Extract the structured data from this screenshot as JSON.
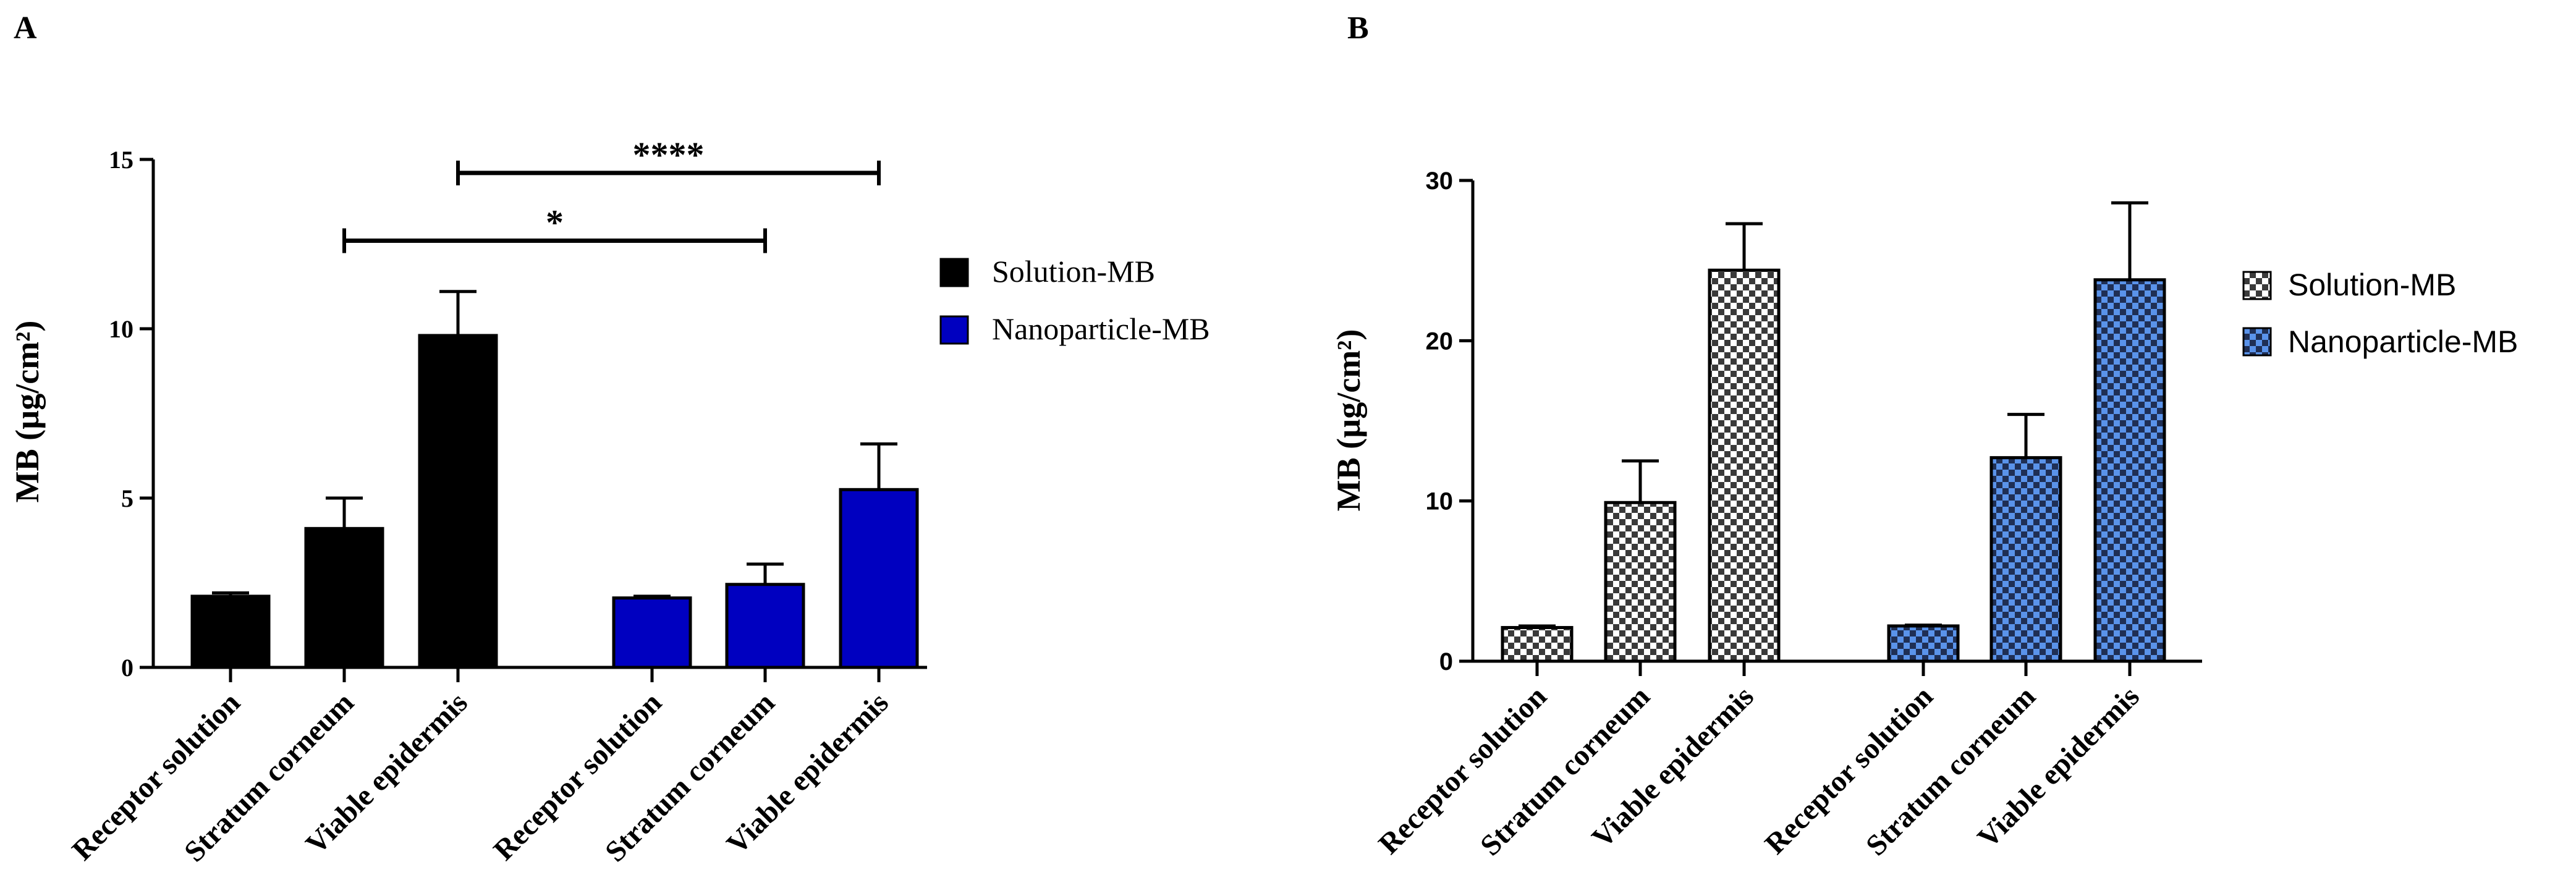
{
  "chart_data": [
    {
      "panel_label": "A",
      "type": "bar",
      "title": "",
      "ylabel": "MB (µg/cm²)",
      "ylim": [
        0,
        15
      ],
      "yticks": [
        0,
        5,
        10,
        15
      ],
      "legend_position": "right",
      "colors": {
        "Solution-MB": "#000000",
        "Nanoparticle-MB": "#0000c0"
      },
      "groups": [
        {
          "series": "Solution-MB",
          "categories": [
            "Receptor solution",
            "Stratum corneum",
            "Viable epidermis"
          ],
          "values": [
            2.1,
            4.1,
            9.8
          ],
          "errors": [
            0.1,
            0.9,
            1.3
          ]
        },
        {
          "series": "Nanoparticle-MB",
          "categories": [
            "Receptor solution",
            "Stratum corneum",
            "Viable epidermis"
          ],
          "values": [
            2.05,
            2.45,
            5.25
          ],
          "errors": [
            0.05,
            0.6,
            1.35
          ]
        }
      ],
      "significance": [
        {
          "label": "*",
          "from_bar": 1,
          "to_bar": 4,
          "y": 12.6
        },
        {
          "label": "****",
          "from_bar": 2,
          "to_bar": 5,
          "y": 14.6
        }
      ]
    },
    {
      "panel_label": "B",
      "type": "bar",
      "title": "",
      "ylabel": "MB (µg/cm²)",
      "ylim": [
        0,
        30
      ],
      "yticks": [
        0,
        10,
        20,
        30
      ],
      "legend_position": "right",
      "colors": {
        "Solution-MB": "#3a3a3a",
        "Nanoparticle-MB": "#2f6fd0"
      },
      "groups": [
        {
          "series": "Solution-MB",
          "categories": [
            "Receptor solution",
            "Stratum corneum",
            "Viable epidermis"
          ],
          "values": [
            2.1,
            9.9,
            24.4
          ],
          "errors": [
            0.1,
            2.6,
            2.9
          ]
        },
        {
          "series": "Nanoparticle-MB",
          "categories": [
            "Receptor solution",
            "Stratum corneum",
            "Viable epidermis"
          ],
          "values": [
            2.2,
            12.7,
            23.8
          ],
          "errors": [
            0.05,
            2.7,
            4.8
          ]
        }
      ],
      "significance": []
    }
  ]
}
